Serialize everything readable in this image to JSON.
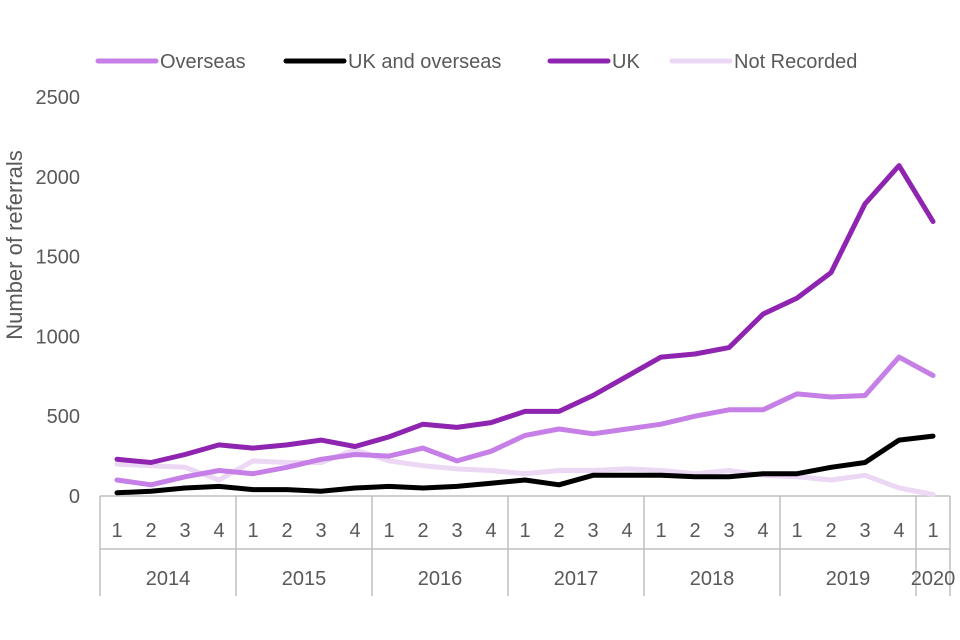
{
  "chart_data": {
    "type": "line",
    "title": "",
    "xlabel": "",
    "ylabel": "Number of referrals",
    "ylim": [
      0,
      2500
    ],
    "yticks": [
      0,
      500,
      1000,
      1500,
      2000,
      2500
    ],
    "grid": false,
    "legend_position": "top",
    "quarters": [
      "1",
      "2",
      "3",
      "4",
      "1",
      "2",
      "3",
      "4",
      "1",
      "2",
      "3",
      "4",
      "1",
      "2",
      "3",
      "4",
      "1",
      "2",
      "3",
      "4",
      "1",
      "2",
      "3",
      "4",
      "1"
    ],
    "years": [
      {
        "label": "2014",
        "quarters": 4
      },
      {
        "label": "2015",
        "quarters": 4
      },
      {
        "label": "2016",
        "quarters": 4
      },
      {
        "label": "2017",
        "quarters": 4
      },
      {
        "label": "2018",
        "quarters": 4
      },
      {
        "label": "2019",
        "quarters": 4
      },
      {
        "label": "2020",
        "quarters": 1
      }
    ],
    "series": [
      {
        "name": "Not Recorded",
        "color": "#ecd7f5",
        "values": [
          200,
          190,
          180,
          100,
          220,
          210,
          210,
          290,
          220,
          190,
          170,
          160,
          140,
          160,
          160,
          170,
          160,
          140,
          160,
          130,
          120,
          100,
          130,
          50,
          10
        ]
      },
      {
        "name": "UK and overseas",
        "color": "#000000",
        "values": [
          20,
          30,
          50,
          60,
          40,
          40,
          30,
          50,
          60,
          50,
          60,
          80,
          100,
          70,
          130,
          130,
          130,
          120,
          120,
          140,
          140,
          180,
          210,
          350,
          375
        ]
      },
      {
        "name": "Overseas",
        "color": "#c67fe6",
        "values": [
          100,
          70,
          120,
          160,
          140,
          180,
          230,
          260,
          250,
          300,
          220,
          280,
          380,
          420,
          390,
          420,
          450,
          500,
          540,
          540,
          640,
          620,
          630,
          870,
          755
        ]
      },
      {
        "name": "UK",
        "color": "#8e24b0",
        "values": [
          230,
          210,
          260,
          320,
          300,
          320,
          350,
          310,
          370,
          450,
          430,
          460,
          530,
          530,
          630,
          750,
          870,
          890,
          930,
          1140,
          1240,
          1400,
          1830,
          2070,
          1720
        ]
      }
    ],
    "legend_order": [
      "Overseas",
      "UK and overseas",
      "UK",
      "Not Recorded"
    ]
  }
}
